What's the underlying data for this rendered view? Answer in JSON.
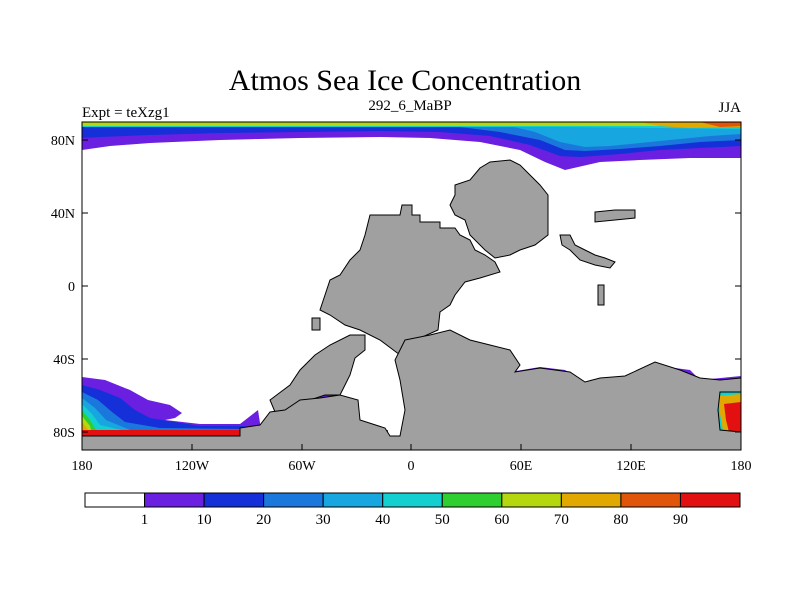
{
  "title": "Atmos Sea Ice Concentration",
  "left_label": "Expt = teXzg1",
  "center_label": "292_6_MaBP",
  "right_label": "JJA",
  "lon_ticks": [
    "180",
    "120W",
    "60W",
    "0",
    "60E",
    "120E",
    "180"
  ],
  "lat_ticks": [
    "80N",
    "40N",
    "0",
    "40S",
    "80S"
  ],
  "colorbar": {
    "labels": [
      "1",
      "10",
      "20",
      "30",
      "40",
      "50",
      "60",
      "70",
      "80",
      "90"
    ],
    "colors": [
      "#ffffff",
      "#6b1fe0",
      "#1530d8",
      "#1a78dc",
      "#18a6e0",
      "#13cfcf",
      "#2fcf2f",
      "#b5d710",
      "#e0a800",
      "#e0550a",
      "#e21010"
    ]
  },
  "land_color": "#a0a0a0"
}
